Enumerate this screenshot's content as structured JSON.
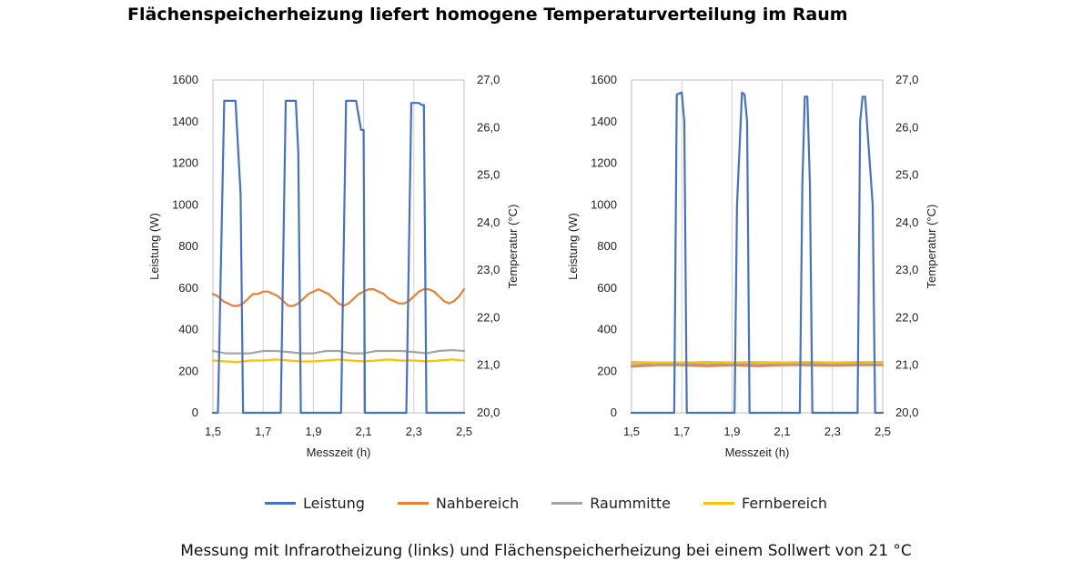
{
  "title": "Flächenspeicherheizung liefert homogene Temperaturverteilung im Raum",
  "caption": "Messung mit Infrarotheizung (links) und Flächenspeicherheizung bei einem Sollwert von 21 °C",
  "legend": [
    {
      "name": "Leistung",
      "color": "#4472C4"
    },
    {
      "name": "Nahbereich",
      "color": "#ED7D31"
    },
    {
      "name": "Raummitte",
      "color": "#A5A5A5"
    },
    {
      "name": "Fernbereich",
      "color": "#FFC000"
    }
  ],
  "chart_data": [
    {
      "type": "line",
      "xlabel": "Messzeit (h)",
      "ylabel": "Leistung (W)",
      "y2label": "Temperatur (°C)",
      "xlim": [
        1.5,
        2.5
      ],
      "ylim": [
        0,
        1600
      ],
      "y2lim": [
        20.0,
        27.0
      ],
      "xticks": [
        "1,5",
        "1,7",
        "1,9",
        "2,1",
        "2,3",
        "2,5"
      ],
      "yticks": [
        "0",
        "200",
        "400",
        "600",
        "800",
        "1000",
        "1200",
        "1400",
        "1600"
      ],
      "y2ticks": [
        "20,0",
        "21,0",
        "22,0",
        "23,0",
        "24,0",
        "25,0",
        "26,0",
        "27,0"
      ],
      "grid": "vertical",
      "series": [
        {
          "name": "Leistung",
          "axis": "left",
          "color": "#4472C4",
          "x": [
            1.5,
            1.505,
            1.52,
            1.545,
            1.55,
            1.57,
            1.59,
            1.61,
            1.62,
            1.63,
            1.64,
            1.65,
            1.7,
            1.75,
            1.77,
            1.79,
            1.8,
            1.81,
            1.83,
            1.84,
            1.85,
            1.86,
            1.9,
            1.95,
            2.01,
            2.03,
            2.05,
            2.07,
            2.09,
            2.1,
            2.105,
            2.11,
            2.15,
            2.2,
            2.25,
            2.27,
            2.29,
            2.3,
            2.31,
            2.32,
            2.33,
            2.34,
            2.35,
            2.36,
            2.4,
            2.45,
            2.5
          ],
          "values": [
            0,
            0,
            0,
            1500,
            1500,
            1500,
            1500,
            1050,
            0,
            0,
            0,
            0,
            0,
            0,
            0,
            1500,
            1500,
            1500,
            1500,
            1250,
            0,
            0,
            0,
            0,
            0,
            1500,
            1500,
            1500,
            1360,
            1360,
            0,
            0,
            0,
            0,
            0,
            0,
            1490,
            1490,
            1490,
            1490,
            1480,
            1480,
            0,
            0,
            0,
            0,
            0
          ]
        },
        {
          "name": "Nahbereich",
          "axis": "right",
          "color": "#ED7D31",
          "x": [
            1.5,
            1.52,
            1.54,
            1.56,
            1.58,
            1.6,
            1.62,
            1.64,
            1.66,
            1.68,
            1.7,
            1.72,
            1.74,
            1.76,
            1.78,
            1.8,
            1.82,
            1.84,
            1.86,
            1.88,
            1.9,
            1.92,
            1.94,
            1.96,
            1.98,
            2.0,
            2.02,
            2.04,
            2.06,
            2.08,
            2.1,
            2.12,
            2.14,
            2.16,
            2.18,
            2.2,
            2.22,
            2.24,
            2.26,
            2.28,
            2.3,
            2.32,
            2.34,
            2.36,
            2.38,
            2.4,
            2.42,
            2.44,
            2.46,
            2.48,
            2.5
          ],
          "values": [
            22.5,
            22.45,
            22.35,
            22.3,
            22.25,
            22.25,
            22.3,
            22.4,
            22.5,
            22.5,
            22.55,
            22.55,
            22.5,
            22.45,
            22.35,
            22.25,
            22.25,
            22.3,
            22.4,
            22.5,
            22.55,
            22.6,
            22.55,
            22.5,
            22.4,
            22.3,
            22.25,
            22.3,
            22.4,
            22.5,
            22.55,
            22.6,
            22.6,
            22.55,
            22.5,
            22.4,
            22.35,
            22.3,
            22.3,
            22.35,
            22.45,
            22.55,
            22.6,
            22.6,
            22.55,
            22.45,
            22.35,
            22.3,
            22.35,
            22.45,
            22.6
          ]
        },
        {
          "name": "Raummitte",
          "axis": "right",
          "color": "#A5A5A5",
          "x": [
            1.5,
            1.55,
            1.6,
            1.65,
            1.7,
            1.75,
            1.8,
            1.85,
            1.9,
            1.95,
            2.0,
            2.05,
            2.1,
            2.15,
            2.2,
            2.25,
            2.3,
            2.35,
            2.4,
            2.45,
            2.5
          ],
          "values": [
            21.3,
            21.25,
            21.25,
            21.25,
            21.3,
            21.3,
            21.28,
            21.25,
            21.25,
            21.3,
            21.3,
            21.25,
            21.25,
            21.3,
            21.3,
            21.3,
            21.28,
            21.25,
            21.3,
            21.32,
            21.3
          ]
        },
        {
          "name": "Fernbereich",
          "axis": "right",
          "color": "#FFC000",
          "x": [
            1.5,
            1.55,
            1.6,
            1.65,
            1.7,
            1.75,
            1.8,
            1.85,
            1.9,
            1.95,
            2.0,
            2.05,
            2.1,
            2.15,
            2.2,
            2.25,
            2.3,
            2.35,
            2.4,
            2.45,
            2.5
          ],
          "values": [
            21.1,
            21.08,
            21.07,
            21.1,
            21.1,
            21.12,
            21.1,
            21.08,
            21.08,
            21.1,
            21.12,
            21.1,
            21.08,
            21.1,
            21.12,
            21.1,
            21.1,
            21.08,
            21.1,
            21.12,
            21.1
          ]
        }
      ]
    },
    {
      "type": "line",
      "xlabel": "Messzeit (h)",
      "ylabel": "Leistung (W)",
      "y2label": "Temperatur (°C)",
      "xlim": [
        1.5,
        2.5
      ],
      "ylim": [
        0,
        1600
      ],
      "y2lim": [
        20.0,
        27.0
      ],
      "xticks": [
        "1,5",
        "1,7",
        "1,9",
        "2,1",
        "2,3",
        "2,5"
      ],
      "yticks": [
        "0",
        "200",
        "400",
        "600",
        "800",
        "1000",
        "1200",
        "1400",
        "1600"
      ],
      "y2ticks": [
        "20,0",
        "21,0",
        "22,0",
        "23,0",
        "24,0",
        "25,0",
        "26,0",
        "27,0"
      ],
      "grid": "vertical",
      "series": [
        {
          "name": "Leistung",
          "axis": "left",
          "color": "#4472C4",
          "x": [
            1.5,
            1.55,
            1.6,
            1.65,
            1.67,
            1.68,
            1.7,
            1.71,
            1.72,
            1.73,
            1.78,
            1.83,
            1.88,
            1.91,
            1.92,
            1.94,
            1.95,
            1.96,
            1.97,
            2.0,
            2.05,
            2.1,
            2.15,
            2.17,
            2.18,
            2.19,
            2.2,
            2.21,
            2.22,
            2.25,
            2.3,
            2.35,
            2.4,
            2.41,
            2.42,
            2.43,
            2.46,
            2.47,
            2.5
          ],
          "values": [
            0,
            0,
            0,
            0,
            0,
            1530,
            1540,
            1400,
            0,
            0,
            0,
            0,
            0,
            0,
            1000,
            1540,
            1530,
            1400,
            0,
            0,
            0,
            0,
            0,
            0,
            1100,
            1520,
            1520,
            1100,
            0,
            0,
            0,
            0,
            0,
            1400,
            1520,
            1520,
            1000,
            0,
            0
          ]
        },
        {
          "name": "Nahbereich",
          "axis": "right",
          "color": "#ED7D31",
          "x": [
            1.5,
            1.6,
            1.7,
            1.8,
            1.9,
            2.0,
            2.1,
            2.2,
            2.3,
            2.4,
            2.5
          ],
          "values": [
            20.97,
            21.0,
            21.0,
            20.98,
            21.0,
            20.98,
            21.0,
            21.0,
            20.99,
            21.0,
            21.0
          ]
        },
        {
          "name": "Raummitte",
          "axis": "right",
          "color": "#A5A5A5",
          "x": [
            1.5,
            1.6,
            1.7,
            1.8,
            1.9,
            2.0,
            2.1,
            2.2,
            2.3,
            2.4,
            2.5
          ],
          "values": [
            21.02,
            21.02,
            21.03,
            21.02,
            21.03,
            21.02,
            21.02,
            21.03,
            21.02,
            21.03,
            21.02
          ]
        },
        {
          "name": "Fernbereich",
          "axis": "right",
          "color": "#FFC000",
          "x": [
            1.5,
            1.6,
            1.7,
            1.8,
            1.9,
            2.0,
            2.1,
            2.2,
            2.3,
            2.4,
            2.5
          ],
          "values": [
            21.07,
            21.06,
            21.06,
            21.07,
            21.06,
            21.07,
            21.06,
            21.07,
            21.06,
            21.07,
            21.07
          ]
        }
      ]
    }
  ]
}
